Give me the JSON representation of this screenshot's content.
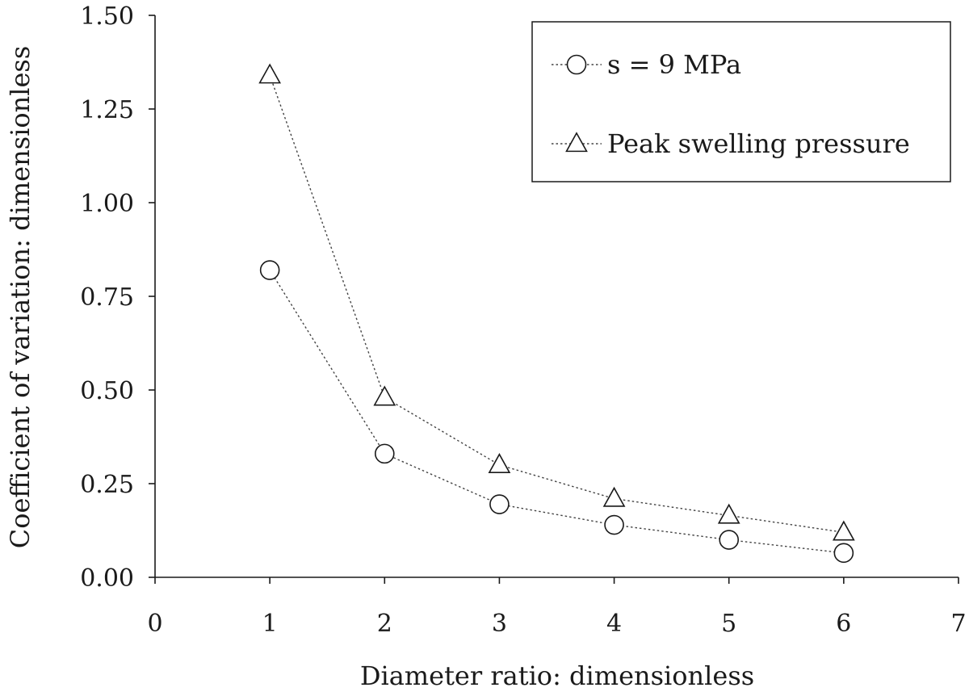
{
  "chart_data": {
    "type": "scatter",
    "title": "",
    "xlabel": "Diameter ratio: dimensionless",
    "ylabel": "Coefficient of variation: dimensionless",
    "xlim": [
      0,
      7
    ],
    "ylim": [
      0,
      1.5
    ],
    "xticks": [
      "0",
      "1",
      "2",
      "3",
      "4",
      "5",
      "6",
      "7"
    ],
    "yticks": [
      "0.00",
      "0.25",
      "0.50",
      "0.75",
      "1.00",
      "1.25",
      "1.50"
    ],
    "grid": false,
    "legend_position": "top-right",
    "line_style": "dotted",
    "series": [
      {
        "name": "s = 9 MPa",
        "marker": "circle",
        "x": [
          1,
          2,
          3,
          4,
          5,
          6
        ],
        "y": [
          0.82,
          0.33,
          0.195,
          0.14,
          0.1,
          0.065
        ]
      },
      {
        "name": "Peak swelling pressure",
        "marker": "triangle",
        "x": [
          1,
          2,
          3,
          4,
          5,
          6
        ],
        "y": [
          1.34,
          0.48,
          0.3,
          0.21,
          0.165,
          0.12
        ]
      }
    ],
    "colors": {
      "axis": "#1a1a1a",
      "line": "#444444",
      "marker_fill": "#ffffff"
    }
  }
}
